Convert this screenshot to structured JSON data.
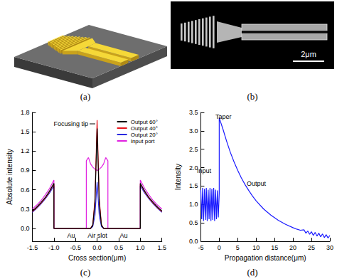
{
  "figure_panels": [
    {
      "label": "(a)"
    },
    {
      "label": "(b)",
      "scale_bar": "2μm"
    }
  ],
  "chart_data": [
    {
      "type": "line",
      "label": "(c)",
      "x_label": "Cross section(μm)",
      "y_label": "Absolute intensity",
      "x": [
        -1.5,
        -1.4,
        -1.3,
        -1.2,
        -1.1,
        -1.0,
        -1.0,
        -0.5,
        -0.25,
        -0.25,
        -0.2,
        -0.15,
        -0.1,
        -0.05,
        0,
        0.05,
        0.1,
        0.15,
        0.2,
        0.25,
        0.25,
        0.5,
        1.0,
        1.0,
        1.1,
        1.2,
        1.3,
        1.4,
        1.5
      ],
      "series": [
        {
          "name": "Output 60°",
          "color": "#000000",
          "values": [
            0.27,
            0.33,
            0.4,
            0.48,
            0.58,
            0.7,
            0,
            0,
            0,
            0,
            0,
            0,
            0.05,
            0.4,
            1.55,
            0.4,
            0.05,
            0,
            0,
            0,
            0,
            0,
            0,
            0.7,
            0.58,
            0.48,
            0.4,
            0.33,
            0.27
          ]
        },
        {
          "name": "Output 40°",
          "color": "#e8141c",
          "values": [
            0.26,
            0.32,
            0.39,
            0.47,
            0.57,
            0.69,
            0,
            0,
            0,
            0,
            0,
            0,
            0.06,
            0.45,
            1.68,
            0.45,
            0.06,
            0,
            0,
            0,
            0,
            0,
            0,
            0.69,
            0.57,
            0.47,
            0.39,
            0.32,
            0.26
          ]
        },
        {
          "name": "Output 20°",
          "color": "#2a2ae0",
          "values": [
            0.25,
            0.31,
            0.38,
            0.46,
            0.55,
            0.66,
            0,
            0,
            0,
            0,
            0,
            0,
            0.03,
            0.2,
            0.72,
            0.2,
            0.03,
            0,
            0,
            0,
            0,
            0,
            0,
            0.66,
            0.55,
            0.46,
            0.38,
            0.31,
            0.25
          ]
        },
        {
          "name": "Input port",
          "color": "#e020e0",
          "values": [
            0.3,
            0.36,
            0.43,
            0.52,
            0.62,
            0.75,
            0,
            0,
            0,
            1.05,
            1.1,
            1.0,
            0.95,
            0.92,
            0.9,
            0.92,
            0.95,
            1.0,
            1.1,
            1.05,
            0,
            0,
            0,
            0.75,
            0.62,
            0.52,
            0.43,
            0.36,
            0.3
          ]
        }
      ],
      "xlim": [
        -1.5,
        1.5
      ],
      "xticks": [
        -1.5,
        {
          "value": -1,
          "label": "-1.0"
        },
        -0.5,
        {
          "value": 0,
          "label": "0.0"
        },
        0.5,
        {
          "value": 1,
          "label": "1.0"
        },
        1.5
      ],
      "ylim": [
        -0.2,
        1.8
      ],
      "yticks": [
        {
          "value": 0,
          "label": "0.0"
        },
        0.3,
        0.6,
        0.9,
        1.2,
        1.5,
        1.8
      ],
      "legend": "upper right",
      "grid": false,
      "annotations": [
        "Focusing tip",
        "Au",
        "Air slot",
        "Au"
      ]
    },
    {
      "type": "line",
      "label": "(d)",
      "x_label": "Propagation distance(μm)",
      "y_label": "Intensity",
      "x": [
        -5,
        -4.75,
        -4.5,
        -4.25,
        -4,
        -3.75,
        -3.5,
        -3.25,
        -3,
        -2.75,
        -2.5,
        -2.25,
        -2,
        -1.75,
        -1.5,
        -1.25,
        -1,
        -0.75,
        -0.5,
        -0.25,
        0,
        0,
        0.5,
        1,
        2,
        3,
        4,
        5,
        6,
        7,
        8,
        9,
        10,
        12,
        14,
        16,
        18,
        20,
        21,
        22,
        23,
        23.5,
        24,
        24.5,
        25,
        25.5,
        26,
        26.5,
        27,
        27.5,
        28,
        28.5,
        29,
        29.5,
        30
      ],
      "values": [
        1.4,
        0.6,
        1.45,
        0.55,
        1.42,
        0.58,
        1.45,
        0.55,
        1.4,
        0.6,
        1.45,
        0.55,
        1.42,
        0.58,
        1.45,
        0.55,
        1.4,
        0.6,
        1.38,
        0.65,
        1.3,
        3.35,
        3.2,
        3.05,
        2.72,
        2.42,
        2.16,
        1.93,
        1.72,
        1.54,
        1.38,
        1.23,
        1.1,
        0.88,
        0.71,
        0.57,
        0.46,
        0.37,
        0.33,
        0.3,
        0.31,
        0.22,
        0.28,
        0.19,
        0.26,
        0.16,
        0.24,
        0.14,
        0.22,
        0.12,
        0.2,
        0.1,
        0.18,
        0.09,
        0.16
      ],
      "color": "#1a1aff",
      "xlim": [
        -5,
        30
      ],
      "xticks": [
        -5,
        0,
        5,
        10,
        15,
        20,
        25,
        30
      ],
      "ylim": [
        0,
        3.5
      ],
      "yticks": [
        {
          "value": 0,
          "label": "0.0"
        },
        0.5,
        {
          "value": 1,
          "label": "1.0"
        },
        1.5,
        {
          "value": 2,
          "label": "2.0"
        },
        2.5,
        {
          "value": 3,
          "label": "3.0"
        },
        3.5
      ],
      "grid": false,
      "annotations": [
        "Input",
        "Taper",
        "Output"
      ]
    }
  ]
}
